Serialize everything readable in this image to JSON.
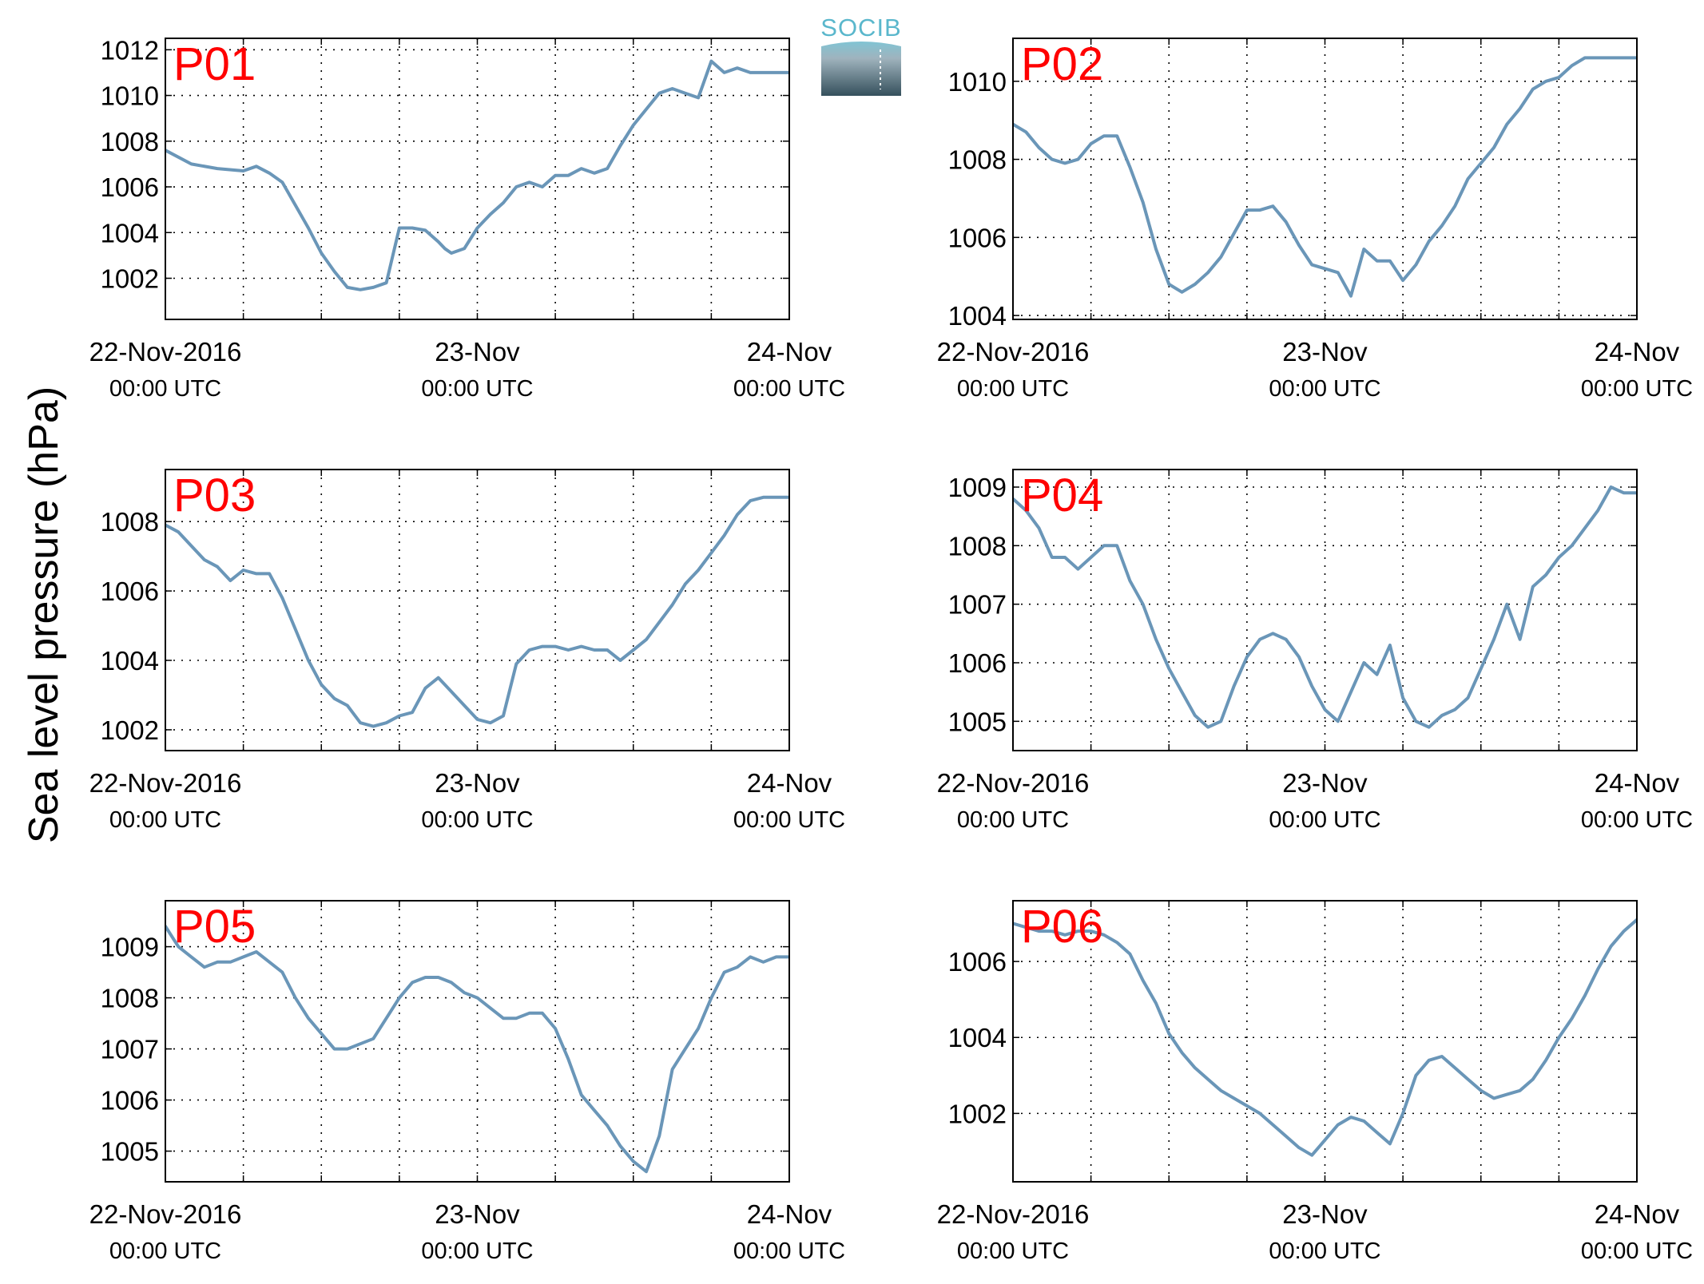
{
  "figure": {
    "ylabel": "Sea level pressure (hPa)",
    "logo_text": "SOCIB",
    "line_color": "#6a96b8",
    "label_color": "#ff0000"
  },
  "chart_data": [
    {
      "type": "line",
      "panel": "P01",
      "ylim": [
        1000.2,
        1012.5
      ],
      "yticks": [
        1002,
        1004,
        1006,
        1008,
        1010,
        1012
      ],
      "xlim_hours": [
        0,
        48
      ],
      "xticks_major": [
        "22-Nov-2016",
        "23-Nov",
        "24-Nov"
      ],
      "xticks_sub": [
        "00:00 UTC",
        "00:00 UTC",
        "00:00 UTC"
      ],
      "grid": true,
      "x_hours": [
        0,
        2,
        4,
        6,
        7,
        8,
        9,
        10,
        11,
        12,
        13,
        14,
        15,
        16,
        17,
        18,
        19,
        20,
        21,
        21.5,
        22,
        23,
        24,
        25,
        26,
        27,
        28,
        29,
        30,
        31,
        32,
        33,
        34,
        35,
        36,
        37,
        38,
        39,
        40,
        41,
        42,
        43,
        44,
        45,
        46,
        47,
        47.3,
        48
      ],
      "values": [
        1007.6,
        1007.0,
        1006.8,
        1006.7,
        1006.9,
        1006.6,
        1006.2,
        1005.2,
        1004.2,
        1003.1,
        1002.3,
        1001.6,
        1001.5,
        1001.6,
        1001.8,
        1004.2,
        1004.2,
        1004.1,
        1003.6,
        1003.3,
        1003.1,
        1003.3,
        1004.2,
        1004.8,
        1005.3,
        1006.0,
        1006.2,
        1006.0,
        1006.5,
        1006.5,
        1006.8,
        1006.6,
        1006.8,
        1007.8,
        1008.7,
        1009.4,
        1010.1,
        1010.3,
        1010.1,
        1009.9,
        1011.5,
        1011.0,
        1011.2,
        1011.0,
        1011.0,
        1011.0,
        1011.0,
        1011.0
      ]
    },
    {
      "type": "line",
      "panel": "P02",
      "ylim": [
        1003.9,
        1011.1
      ],
      "yticks": [
        1004,
        1006,
        1008,
        1010
      ],
      "xlim_hours": [
        0,
        48
      ],
      "xticks_major": [
        "22-Nov-2016",
        "23-Nov",
        "24-Nov"
      ],
      "xticks_sub": [
        "00:00 UTC",
        "00:00 UTC",
        "00:00 UTC"
      ],
      "grid": true,
      "x_hours": [
        0,
        1,
        2,
        3,
        4,
        5,
        6,
        7,
        8,
        9,
        10,
        11,
        12,
        13,
        14,
        15,
        16,
        17,
        18,
        19,
        20,
        21,
        22,
        23,
        24,
        25,
        26,
        27,
        28,
        29,
        30,
        31,
        32,
        33,
        34,
        35,
        36,
        37,
        38,
        39,
        40,
        41,
        42,
        43,
        44,
        45,
        46,
        47,
        48
      ],
      "values": [
        1008.9,
        1008.7,
        1008.3,
        1008.0,
        1007.9,
        1008.0,
        1008.4,
        1008.6,
        1008.6,
        1007.8,
        1006.9,
        1005.7,
        1004.8,
        1004.6,
        1004.8,
        1005.1,
        1005.5,
        1006.1,
        1006.7,
        1006.7,
        1006.8,
        1006.4,
        1005.8,
        1005.3,
        1005.2,
        1005.1,
        1004.5,
        1005.7,
        1005.4,
        1005.4,
        1004.9,
        1005.3,
        1005.9,
        1006.3,
        1006.8,
        1007.5,
        1007.9,
        1008.3,
        1008.9,
        1009.3,
        1009.8,
        1010.0,
        1010.1,
        1010.4,
        1010.6,
        1010.6,
        1010.6,
        1010.6,
        1010.6
      ]
    },
    {
      "type": "line",
      "panel": "P03",
      "ylim": [
        1001.4,
        1009.5
      ],
      "yticks": [
        1002,
        1004,
        1006,
        1008
      ],
      "xlim_hours": [
        0,
        48
      ],
      "xticks_major": [
        "22-Nov-2016",
        "23-Nov",
        "24-Nov"
      ],
      "xticks_sub": [
        "00:00 UTC",
        "00:00 UTC",
        "00:00 UTC"
      ],
      "grid": true,
      "x_hours": [
        0,
        1,
        2,
        3,
        4,
        5,
        6,
        7,
        8,
        9,
        10,
        11,
        12,
        13,
        14,
        15,
        16,
        17,
        18,
        19,
        20,
        21,
        22,
        23,
        24,
        25,
        26,
        27,
        28,
        29,
        30,
        31,
        32,
        33,
        34,
        35,
        36,
        37,
        38,
        39,
        40,
        41,
        42,
        43,
        44,
        45,
        46,
        47,
        48
      ],
      "values": [
        1007.9,
        1007.7,
        1007.3,
        1006.9,
        1006.7,
        1006.3,
        1006.6,
        1006.5,
        1006.5,
        1005.8,
        1004.9,
        1004.0,
        1003.3,
        1002.9,
        1002.7,
        1002.2,
        1002.1,
        1002.2,
        1002.4,
        1002.5,
        1003.2,
        1003.5,
        1003.1,
        1002.7,
        1002.3,
        1002.2,
        1002.4,
        1003.9,
        1004.3,
        1004.4,
        1004.4,
        1004.3,
        1004.4,
        1004.3,
        1004.3,
        1004.0,
        1004.3,
        1004.6,
        1005.1,
        1005.6,
        1006.2,
        1006.6,
        1007.1,
        1007.6,
        1008.2,
        1008.6,
        1008.7,
        1008.7,
        1008.7
      ]
    },
    {
      "type": "line",
      "panel": "P04",
      "ylim": [
        1004.5,
        1009.3
      ],
      "yticks": [
        1005,
        1006,
        1007,
        1008,
        1009
      ],
      "xlim_hours": [
        0,
        48
      ],
      "xticks_major": [
        "22-Nov-2016",
        "23-Nov",
        "24-Nov"
      ],
      "xticks_sub": [
        "00:00 UTC",
        "00:00 UTC",
        "00:00 UTC"
      ],
      "grid": true,
      "x_hours": [
        0,
        1,
        2,
        3,
        4,
        5,
        6,
        7,
        8,
        9,
        10,
        11,
        12,
        13,
        14,
        15,
        16,
        17,
        18,
        19,
        20,
        21,
        22,
        23,
        24,
        25,
        26,
        27,
        28,
        29,
        30,
        31,
        32,
        33,
        34,
        35,
        36,
        37,
        38,
        39,
        40,
        41,
        42,
        43,
        44,
        45,
        46,
        47,
        48
      ],
      "values": [
        1008.8,
        1008.6,
        1008.3,
        1007.8,
        1007.8,
        1007.6,
        1007.8,
        1008.0,
        1008.0,
        1007.4,
        1007.0,
        1006.4,
        1005.9,
        1005.5,
        1005.1,
        1004.9,
        1005.0,
        1005.6,
        1006.1,
        1006.4,
        1006.5,
        1006.4,
        1006.1,
        1005.6,
        1005.2,
        1005.0,
        1005.5,
        1006.0,
        1005.8,
        1006.3,
        1005.4,
        1005.0,
        1004.9,
        1005.1,
        1005.2,
        1005.4,
        1005.9,
        1006.4,
        1007.0,
        1006.4,
        1007.3,
        1007.5,
        1007.8,
        1008.0,
        1008.3,
        1008.6,
        1009.0,
        1008.9,
        1008.9
      ]
    },
    {
      "type": "line",
      "panel": "P05",
      "ylim": [
        1004.4,
        1009.9
      ],
      "yticks": [
        1005,
        1006,
        1007,
        1008,
        1009
      ],
      "xlim_hours": [
        0,
        48
      ],
      "xticks_major": [
        "22-Nov-2016",
        "23-Nov",
        "24-Nov"
      ],
      "xticks_sub": [
        "00:00 UTC",
        "00:00 UTC",
        "00:00 UTC"
      ],
      "grid": true,
      "x_hours": [
        0,
        1,
        2,
        3,
        4,
        5,
        6,
        7,
        8,
        9,
        10,
        11,
        12,
        13,
        14,
        15,
        16,
        17,
        18,
        19,
        20,
        21,
        22,
        23,
        24,
        25,
        26,
        27,
        28,
        29,
        30,
        31,
        32,
        33,
        34,
        35,
        36,
        37,
        38,
        39,
        40,
        41,
        42,
        43,
        44,
        45,
        46,
        47,
        48
      ],
      "values": [
        1009.4,
        1009.0,
        1008.8,
        1008.6,
        1008.7,
        1008.7,
        1008.8,
        1008.9,
        1008.7,
        1008.5,
        1008.0,
        1007.6,
        1007.3,
        1007.0,
        1007.0,
        1007.1,
        1007.2,
        1007.6,
        1008.0,
        1008.3,
        1008.4,
        1008.4,
        1008.3,
        1008.1,
        1008.0,
        1007.8,
        1007.6,
        1007.6,
        1007.7,
        1007.7,
        1007.4,
        1006.8,
        1006.1,
        1005.8,
        1005.5,
        1005.1,
        1004.8,
        1004.6,
        1005.3,
        1006.6,
        1007.0,
        1007.4,
        1008.0,
        1008.5,
        1008.6,
        1008.8,
        1008.7,
        1008.8,
        1008.8
      ]
    },
    {
      "type": "line",
      "panel": "P06",
      "ylim": [
        1000.2,
        1007.6
      ],
      "yticks": [
        1002,
        1004,
        1006
      ],
      "xlim_hours": [
        0,
        48
      ],
      "xticks_major": [
        "22-Nov-2016",
        "23-Nov",
        "24-Nov"
      ],
      "xticks_sub": [
        "00:00 UTC",
        "00:00 UTC",
        "00:00 UTC"
      ],
      "grid": true,
      "x_hours": [
        0,
        1,
        2,
        3,
        4,
        5,
        6,
        7,
        8,
        9,
        10,
        11,
        12,
        13,
        14,
        15,
        16,
        17,
        18,
        19,
        20,
        21,
        22,
        23,
        24,
        25,
        26,
        27,
        28,
        29,
        30,
        31,
        32,
        33,
        34,
        35,
        36,
        37,
        38,
        39,
        40,
        41,
        42,
        43,
        44,
        45,
        46,
        47,
        48
      ],
      "values": [
        1007.0,
        1006.9,
        1006.8,
        1006.8,
        1006.7,
        1006.8,
        1006.8,
        1006.7,
        1006.5,
        1006.2,
        1005.5,
        1004.9,
        1004.1,
        1003.6,
        1003.2,
        1002.9,
        1002.6,
        1002.4,
        1002.2,
        1002.0,
        1001.7,
        1001.4,
        1001.1,
        1000.9,
        1001.3,
        1001.7,
        1001.9,
        1001.8,
        1001.5,
        1001.2,
        1002.0,
        1003.0,
        1003.4,
        1003.5,
        1003.2,
        1002.9,
        1002.6,
        1002.4,
        1002.5,
        1002.6,
        1002.9,
        1003.4,
        1004.0,
        1004.5,
        1005.1,
        1005.8,
        1006.4,
        1006.8,
        1007.1
      ]
    }
  ]
}
